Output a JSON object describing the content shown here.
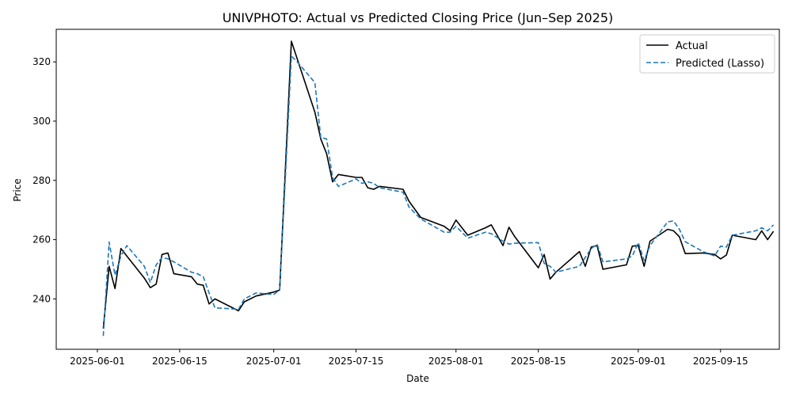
{
  "chart_data": {
    "type": "line",
    "title": "UNIVPHOTO: Actual vs Predicted Closing Price (Jun–Sep 2025)",
    "xlabel": "Date",
    "ylabel": "Price",
    "xlim": [
      "2025-05-25",
      "2025-09-25"
    ],
    "ylim": [
      223,
      331
    ],
    "x_ticks": [
      "2025-06-01",
      "2025-06-15",
      "2025-07-01",
      "2025-07-15",
      "2025-08-01",
      "2025-08-15",
      "2025-09-01",
      "2025-09-15"
    ],
    "y_ticks": [
      240,
      260,
      280,
      300,
      320
    ],
    "grid": false,
    "legend": "top-right",
    "series": [
      {
        "name": "Actual",
        "color": "#000000",
        "style": "solid",
        "points": [
          [
            "2025-06-02",
            230
          ],
          [
            "2025-06-03",
            251
          ],
          [
            "2025-06-04",
            243.5
          ],
          [
            "2025-06-05",
            257
          ],
          [
            "2025-06-06",
            254.5
          ],
          [
            "2025-06-09",
            247
          ],
          [
            "2025-06-10",
            243.8
          ],
          [
            "2025-06-11",
            245
          ],
          [
            "2025-06-12",
            255
          ],
          [
            "2025-06-13",
            255.5
          ],
          [
            "2025-06-14",
            248.5
          ],
          [
            "2025-06-17",
            247.5
          ],
          [
            "2025-06-18",
            245
          ],
          [
            "2025-06-19",
            244.6
          ],
          [
            "2025-06-20",
            238.3
          ],
          [
            "2025-06-21",
            240
          ],
          [
            "2025-06-25",
            236
          ],
          [
            "2025-06-26",
            239
          ],
          [
            "2025-06-28",
            241
          ],
          [
            "2025-07-01",
            242.3
          ],
          [
            "2025-07-02",
            243
          ],
          [
            "2025-07-03",
            285
          ],
          [
            "2025-07-04",
            327
          ],
          [
            "2025-07-05",
            321
          ],
          [
            "2025-07-08",
            303
          ],
          [
            "2025-07-09",
            294
          ],
          [
            "2025-07-10",
            289
          ],
          [
            "2025-07-11",
            279.5
          ],
          [
            "2025-07-12",
            282
          ],
          [
            "2025-07-15",
            281
          ],
          [
            "2025-07-16",
            281
          ],
          [
            "2025-07-17",
            277.5
          ],
          [
            "2025-07-18",
            277
          ],
          [
            "2025-07-19",
            278
          ],
          [
            "2025-07-23",
            277
          ],
          [
            "2025-07-24",
            273
          ],
          [
            "2025-07-26",
            267.5
          ],
          [
            "2025-07-30",
            264.5
          ],
          [
            "2025-07-31",
            263
          ],
          [
            "2025-08-01",
            266.6
          ],
          [
            "2025-08-03",
            261.5
          ],
          [
            "2025-08-06",
            264
          ],
          [
            "2025-08-07",
            265
          ],
          [
            "2025-08-09",
            258
          ],
          [
            "2025-08-10",
            264.2
          ],
          [
            "2025-08-11",
            261
          ],
          [
            "2025-08-15",
            250.5
          ],
          [
            "2025-08-16",
            255
          ],
          [
            "2025-08-17",
            246.7
          ],
          [
            "2025-08-18",
            249
          ],
          [
            "2025-08-22",
            256
          ],
          [
            "2025-08-23",
            251
          ],
          [
            "2025-08-24",
            257.5
          ],
          [
            "2025-08-25",
            258
          ],
          [
            "2025-08-26",
            250
          ],
          [
            "2025-08-30",
            251.5
          ],
          [
            "2025-08-31",
            257.8
          ],
          [
            "2025-09-01",
            258
          ],
          [
            "2025-09-02",
            251
          ],
          [
            "2025-09-03",
            259.5
          ],
          [
            "2025-09-06",
            263.5
          ],
          [
            "2025-09-07",
            263
          ],
          [
            "2025-09-08",
            261
          ],
          [
            "2025-09-09",
            255.3
          ],
          [
            "2025-09-12",
            255.5
          ],
          [
            "2025-09-14",
            255
          ],
          [
            "2025-09-15",
            253.5
          ],
          [
            "2025-09-16",
            254.8
          ],
          [
            "2025-09-17",
            261.5
          ],
          [
            "2025-09-21",
            260
          ],
          [
            "2025-09-22",
            263
          ],
          [
            "2025-09-23",
            260
          ],
          [
            "2025-09-24",
            262.8
          ]
        ]
      },
      {
        "name": "Predicted (Lasso)",
        "color": "#1f77b4",
        "style": "dashed",
        "points": [
          [
            "2025-06-02",
            227.5
          ],
          [
            "2025-06-03",
            259.2
          ],
          [
            "2025-06-04",
            248
          ],
          [
            "2025-06-05",
            254.5
          ],
          [
            "2025-06-06",
            258
          ],
          [
            "2025-06-09",
            251
          ],
          [
            "2025-06-10",
            245.5
          ],
          [
            "2025-06-11",
            251.5
          ],
          [
            "2025-06-12",
            254
          ],
          [
            "2025-06-13",
            253.5
          ],
          [
            "2025-06-14",
            252.5
          ],
          [
            "2025-06-17",
            249
          ],
          [
            "2025-06-18",
            248.5
          ],
          [
            "2025-06-19",
            247.5
          ],
          [
            "2025-06-20",
            242
          ],
          [
            "2025-06-21",
            237
          ],
          [
            "2025-06-25",
            236.5
          ],
          [
            "2025-06-26",
            240
          ],
          [
            "2025-06-28",
            242
          ],
          [
            "2025-07-01",
            241.5
          ],
          [
            "2025-07-02",
            243
          ],
          [
            "2025-07-03",
            282
          ],
          [
            "2025-07-04",
            322
          ],
          [
            "2025-07-05",
            320
          ],
          [
            "2025-07-08",
            313
          ],
          [
            "2025-07-09",
            294.5
          ],
          [
            "2025-07-10",
            294
          ],
          [
            "2025-07-11",
            281
          ],
          [
            "2025-07-12",
            278
          ],
          [
            "2025-07-15",
            280.5
          ],
          [
            "2025-07-16",
            279
          ],
          [
            "2025-07-17",
            279.5
          ],
          [
            "2025-07-18",
            279
          ],
          [
            "2025-07-19",
            277.5
          ],
          [
            "2025-07-23",
            276
          ],
          [
            "2025-07-24",
            271
          ],
          [
            "2025-07-26",
            267
          ],
          [
            "2025-07-30",
            262.5
          ],
          [
            "2025-07-31",
            262.5
          ],
          [
            "2025-08-01",
            264.5
          ],
          [
            "2025-08-03",
            260.5
          ],
          [
            "2025-08-06",
            262.5
          ],
          [
            "2025-08-07",
            262
          ],
          [
            "2025-08-09",
            259.5
          ],
          [
            "2025-08-10",
            258.5
          ],
          [
            "2025-08-11",
            258.8
          ],
          [
            "2025-08-15",
            259
          ],
          [
            "2025-08-16",
            252
          ],
          [
            "2025-08-17",
            251
          ],
          [
            "2025-08-18",
            249
          ],
          [
            "2025-08-22",
            251
          ],
          [
            "2025-08-23",
            254
          ],
          [
            "2025-08-24",
            257
          ],
          [
            "2025-08-25",
            258.5
          ],
          [
            "2025-08-26",
            252.5
          ],
          [
            "2025-08-30",
            253.5
          ],
          [
            "2025-08-31",
            254.5
          ],
          [
            "2025-09-01",
            259
          ],
          [
            "2025-09-02",
            253
          ],
          [
            "2025-09-03",
            258
          ],
          [
            "2025-09-06",
            266
          ],
          [
            "2025-09-07",
            266.3
          ],
          [
            "2025-09-08",
            263.5
          ],
          [
            "2025-09-09",
            259.3
          ],
          [
            "2025-09-12",
            256
          ],
          [
            "2025-09-14",
            254.5
          ],
          [
            "2025-09-15",
            257.8
          ],
          [
            "2025-09-16",
            257.5
          ],
          [
            "2025-09-17",
            261.5
          ],
          [
            "2025-09-21",
            263
          ],
          [
            "2025-09-22",
            264
          ],
          [
            "2025-09-23",
            263
          ],
          [
            "2025-09-24",
            265
          ]
        ]
      }
    ]
  }
}
